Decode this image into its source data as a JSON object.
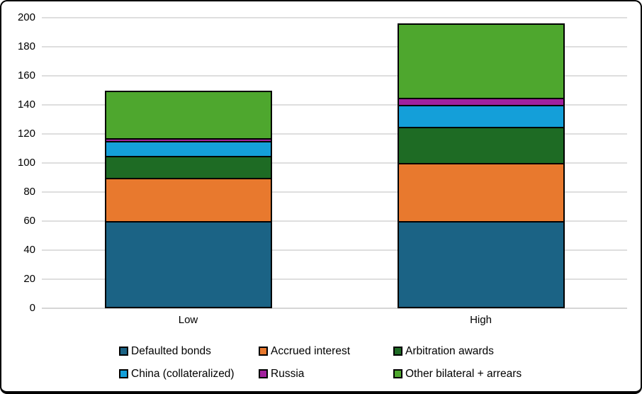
{
  "chart_data": {
    "type": "bar",
    "stacked": true,
    "orientation": "vertical",
    "categories": [
      "Low",
      "High"
    ],
    "series": [
      {
        "name": "Defaulted bonds",
        "color": "#1b6385",
        "values": [
          60,
          60
        ]
      },
      {
        "name": "Accrued interest",
        "color": "#e8792e",
        "values": [
          30,
          40
        ]
      },
      {
        "name": "Arbitration awards",
        "color": "#1e6b24",
        "values": [
          15,
          25
        ]
      },
      {
        "name": "China (collateralized)",
        "color": "#149fd9",
        "values": [
          10,
          15
        ]
      },
      {
        "name": "Russia",
        "color": "#a2219e",
        "values": [
          2,
          5
        ]
      },
      {
        "name": "Other bilateral + arrears",
        "color": "#4ea72e",
        "values": [
          33,
          51
        ]
      }
    ],
    "totals": [
      150,
      196
    ],
    "ylim": [
      0,
      200
    ],
    "yticks": [
      0,
      20,
      40,
      60,
      80,
      100,
      120,
      140,
      160,
      180,
      200
    ],
    "grid": true,
    "gridline_color": "#dedede",
    "bar_edge_color": "#000000",
    "legend_position": "bottom",
    "legend_rows": [
      [
        0,
        1,
        2
      ],
      [
        3,
        4,
        5
      ]
    ]
  }
}
